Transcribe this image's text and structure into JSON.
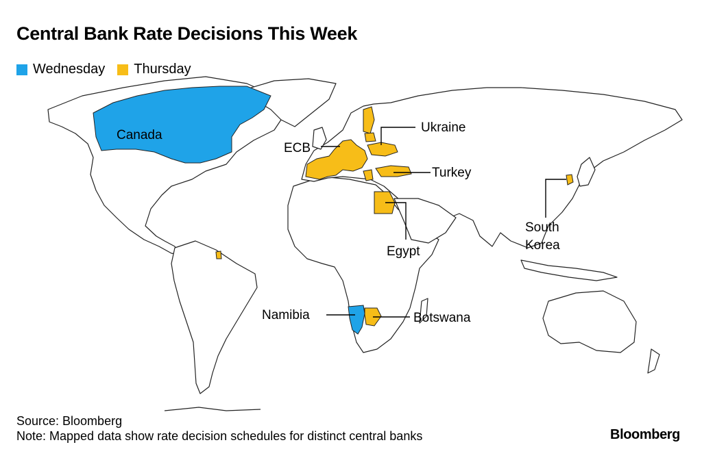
{
  "title": "Central Bank Rate Decisions This Week",
  "legend": [
    {
      "label": "Wednesday",
      "color": "#1fa3e8"
    },
    {
      "label": "Thursday",
      "color": "#f7bd18"
    }
  ],
  "labels": {
    "canada": "Canada",
    "ecb": "ECB",
    "ukraine": "Ukraine",
    "turkey": "Turkey",
    "egypt": "Egypt",
    "south_korea_line1": "South",
    "south_korea_line2": "Korea",
    "namibia": "Namibia",
    "botswana": "Botswana"
  },
  "decisions": {
    "wednesday": [
      "Canada",
      "Namibia"
    ],
    "thursday": [
      "ECB",
      "Ukraine",
      "Turkey",
      "Egypt",
      "South Korea",
      "Botswana"
    ]
  },
  "source": "Source: Bloomberg",
  "note": "Note: Mapped data show rate decision schedules for distinct central banks",
  "brand": "Bloomberg"
}
